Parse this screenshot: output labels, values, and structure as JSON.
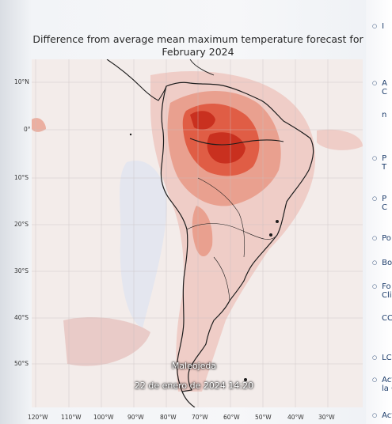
{
  "map": {
    "title_line1": "Difference from average mean maximum temperature forecast for",
    "title_line2": "February 2024",
    "colors": {
      "ocean": "#f3ecea",
      "warm_light": "#efcdc7",
      "warm_mid": "#e9a08f",
      "warm_strong": "#e05d45",
      "warm_max": "#c9301f",
      "cool_light": "#dde4f1",
      "coastline": "#1c1c1c"
    },
    "lat_labels": [
      "10°N",
      "0°",
      "10°S",
      "20°S",
      "30°S",
      "40°S",
      "50°S"
    ],
    "lon_labels": [
      "120°W",
      "110°W",
      "100°W",
      "90°W",
      "80°W",
      "70°W",
      "60°W",
      "50°W",
      "40°W",
      "30°W"
    ]
  },
  "side_panel": {
    "items": [
      {
        "letter": "I",
        "sub": ""
      },
      {
        "letter": "A",
        "sub": "C"
      },
      {
        "letter": "",
        "sub": "n"
      },
      {
        "letter": "P",
        "sub": "T"
      },
      {
        "letter": "P",
        "sub": "C"
      },
      {
        "letter": "Po",
        "sub": ""
      },
      {
        "letter": "Bo",
        "sub": ""
      },
      {
        "letter": "Fo",
        "sub": "Cli"
      },
      {
        "letter": "",
        "sub": "CC"
      },
      {
        "letter": "LC",
        "sub": ""
      },
      {
        "letter": "Act",
        "sub": "la C"
      },
      {
        "letter": "Acti",
        "sub": ""
      }
    ]
  },
  "watermark": {
    "author": "Maleojeda",
    "timestamp": "22 de enero de 2024 14:20"
  }
}
